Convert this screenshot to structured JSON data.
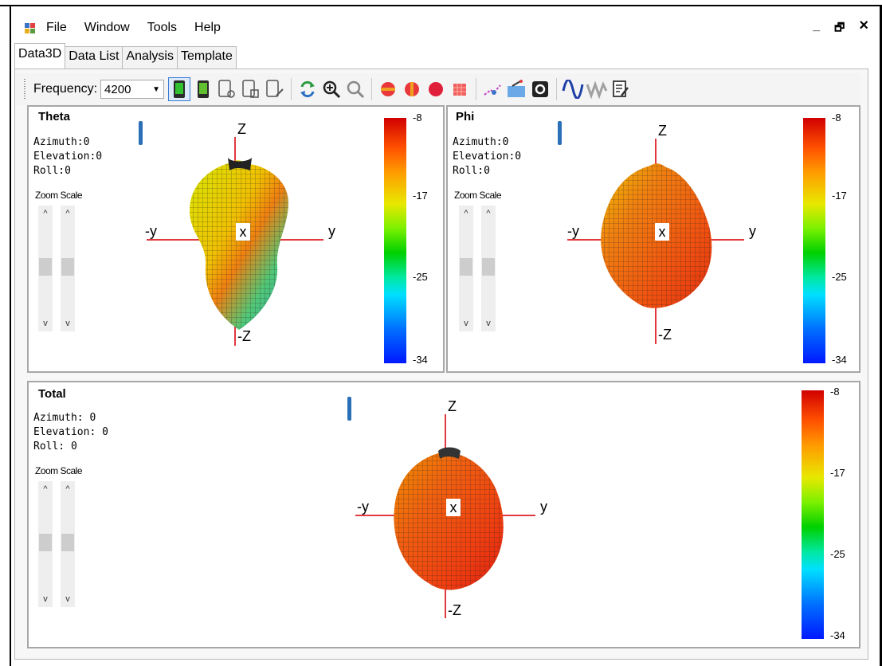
{
  "menu": {
    "items": [
      "File",
      "Window",
      "Tools",
      "Help"
    ]
  },
  "window_controls": {
    "minimize": "_",
    "restore": "🗗",
    "close": "×"
  },
  "tabs": [
    {
      "label": "Data3D"
    },
    {
      "label": "Data List"
    },
    {
      "label": "Analysis"
    },
    {
      "label": "Template"
    }
  ],
  "toolbar": {
    "frequency_label": "Frequency:",
    "frequency_value": "4200"
  },
  "panels": {
    "theta": {
      "title": "Theta",
      "info": "Azimuth:0\nElevation:0\nRoll:0",
      "zoom_label": "Zoom Scale",
      "colorbar": {
        "top": "-8",
        "v2": "-17",
        "v3": "-25",
        "bottom": "-34"
      },
      "axes": {
        "z": "Z",
        "neg_z": "-Z",
        "y": "y",
        "neg_y": "-y",
        "x": "x"
      }
    },
    "phi": {
      "title": "Phi",
      "info": "Azimuth:0\nElevation:0\nRoll:0",
      "zoom_label": "Zoom Scale",
      "colorbar": {
        "top": "-8",
        "v2": "-17",
        "v3": "-25",
        "bottom": "-34"
      },
      "axes": {
        "z": "Z",
        "neg_z": "-Z",
        "y": "y",
        "neg_y": "-y",
        "x": "x"
      }
    },
    "total": {
      "title": "Total",
      "info": "Azimuth: 0\nElevation: 0\nRoll: 0",
      "zoom_label": "Zoom Scale",
      "colorbar": {
        "top": "-8",
        "v2": "-17",
        "v3": "-25",
        "bottom": "-34"
      },
      "axes": {
        "z": "Z",
        "neg_z": "-Z",
        "y": "y",
        "neg_y": "-y",
        "x": "x"
      }
    }
  },
  "slider_arrows": {
    "up": "^",
    "down": "v"
  }
}
